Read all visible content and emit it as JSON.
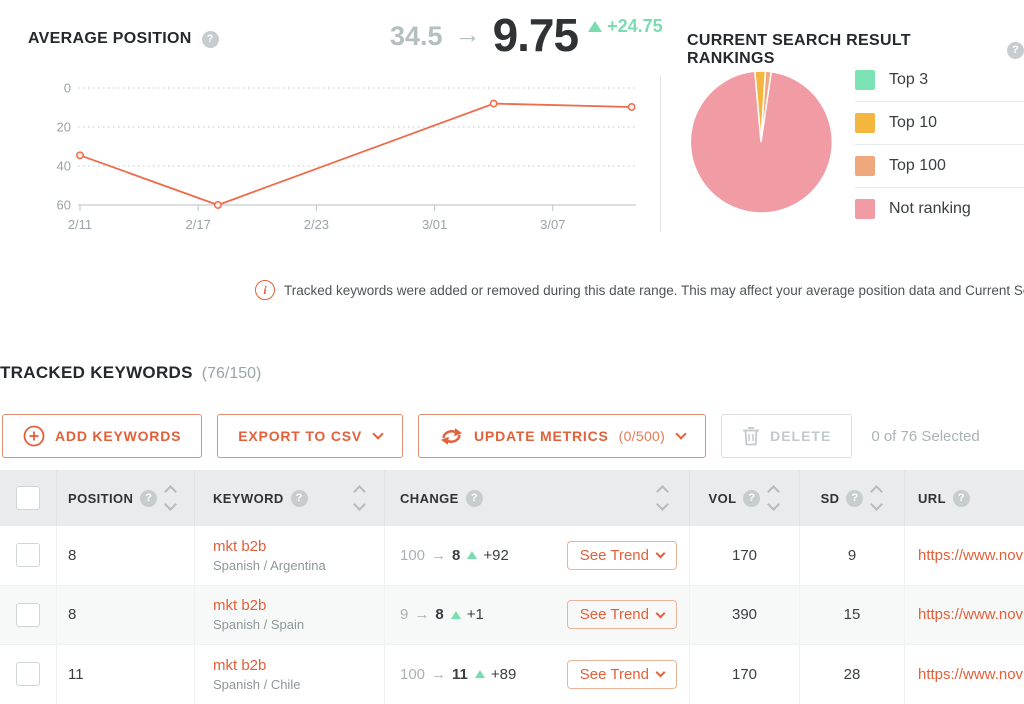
{
  "colors": {
    "accent_orange": "#e2603a",
    "line_orange": "#ee6c4a",
    "positive_green": "#7bdcb0",
    "pie_green": "#7ce3b4",
    "pie_yellow": "#f3b73f",
    "pie_orange": "#efa87c",
    "pie_pink": "#f19ba4"
  },
  "average_position": {
    "title": "AVERAGE POSITION",
    "from": "34.5",
    "arrow": "→",
    "to": "9.75",
    "delta": "+24.75"
  },
  "rankings": {
    "title": "CURRENT SEARCH RESULT RANKINGS"
  },
  "chart_data": [
    {
      "type": "line",
      "title": "AVERAGE POSITION",
      "y_ticks": [
        0,
        20,
        40,
        60
      ],
      "ylim": [
        0,
        60
      ],
      "y_axis_inverted": true,
      "grid": "dotted-horizontal",
      "line_color": "#ee6c4a",
      "x_ticks": [
        {
          "label": "2/11",
          "day": 0
        },
        {
          "label": "2/17",
          "day": 6
        },
        {
          "label": "2/23",
          "day": 12
        },
        {
          "label": "3/01",
          "day": 18
        },
        {
          "label": "3/07",
          "day": 24
        }
      ],
      "series": [
        {
          "name": "Average Position",
          "points": [
            {
              "date": "2/11",
              "day": 0,
              "value": 34.5
            },
            {
              "date": "2/18",
              "day": 7,
              "value": 60
            },
            {
              "date": "3/04",
              "day": 21,
              "value": 8
            },
            {
              "date": "3/11",
              "day": 28,
              "value": 9.75
            }
          ]
        }
      ]
    },
    {
      "type": "pie",
      "title": "CURRENT SEARCH RESULT RANKINGS",
      "legend_position": "right",
      "slices": [
        {
          "label": "Top 3",
          "percent": 0,
          "color": "#7ce3b4"
        },
        {
          "label": "Top 10",
          "percent": 2.4,
          "color": "#f3b73f"
        },
        {
          "label": "Top 100",
          "percent": 1.3,
          "color": "#efa87c"
        },
        {
          "label": "Not ranking",
          "percent": 96.3,
          "color": "#f19ba4"
        }
      ]
    }
  ],
  "info_banner": {
    "text": "Tracked keywords were added or removed during this date range. This may affect your average position data and Current Search Results R"
  },
  "tracked": {
    "title": "TRACKED KEYWORDS",
    "count": "(76/150)"
  },
  "toolbar": {
    "add_keywords": "ADD KEYWORDS",
    "export_csv": "EXPORT TO CSV",
    "update_metrics": "UPDATE METRICS",
    "update_metrics_quota": "(0/500)",
    "delete": "DELETE",
    "selected": "0 of 76 Selected"
  },
  "table": {
    "columns": {
      "position": "POSITION",
      "keyword": "KEYWORD",
      "change": "CHANGE",
      "vol": "VOL",
      "sd": "SD",
      "url": "URL"
    },
    "see_trend": "See Trend",
    "arrow": "→",
    "rows": [
      {
        "position": "8",
        "keyword": "mkt b2b",
        "locale": "Spanish / Argentina",
        "change_from": "100",
        "change_to": "8",
        "change_delta": "+92",
        "vol": "170",
        "sd": "9",
        "url": "https://www.nov"
      },
      {
        "position": "8",
        "keyword": "mkt b2b",
        "locale": "Spanish / Spain",
        "change_from": "9",
        "change_to": "8",
        "change_delta": "+1",
        "vol": "390",
        "sd": "15",
        "url": "https://www.nov"
      },
      {
        "position": "11",
        "keyword": "mkt b2b",
        "locale": "Spanish / Chile",
        "change_from": "100",
        "change_to": "11",
        "change_delta": "+89",
        "vol": "170",
        "sd": "28",
        "url": "https://www.nov"
      }
    ]
  }
}
